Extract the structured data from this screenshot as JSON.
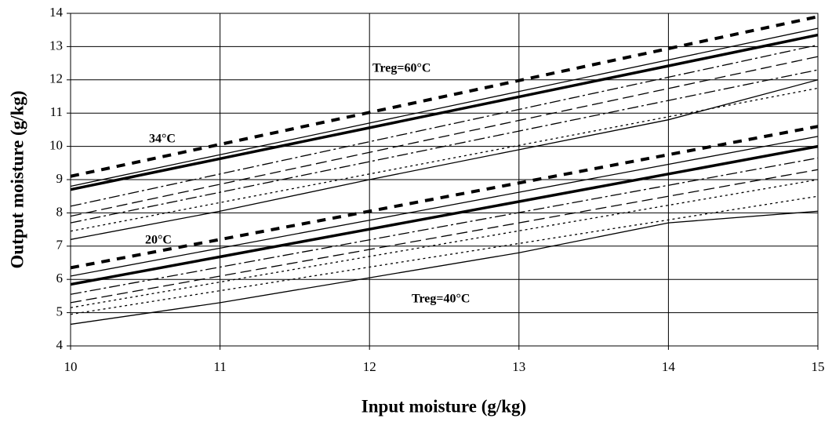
{
  "chart_data": {
    "type": "line",
    "xlabel": "Input moisture (g/kg)",
    "ylabel": "Output moisture (g/kg)",
    "x": [
      10,
      11,
      12,
      13,
      14,
      15
    ],
    "xlim": [
      10,
      15
    ],
    "xticks": [
      10,
      11,
      12,
      13,
      14,
      15
    ],
    "ylim": [
      4,
      14
    ],
    "yticks": [
      4,
      5,
      6,
      7,
      8,
      9,
      10,
      11,
      12,
      13,
      14
    ],
    "grid": true,
    "series": [
      {
        "color": "#000000",
        "style": "dashed",
        "weight": "thick",
        "values": [
          9.1,
          10.06,
          11.02,
          11.98,
          12.94,
          13.9
        ]
      },
      {
        "color": "#000000",
        "style": "solid",
        "weight": "thin",
        "values": [
          8.8,
          9.75,
          10.7,
          11.65,
          12.6,
          13.55
        ]
      },
      {
        "color": "#000000",
        "style": "solid",
        "weight": "thick",
        "values": [
          8.7,
          9.63,
          10.56,
          11.49,
          12.42,
          13.35
        ]
      },
      {
        "color": "#000000",
        "style": "dash-dot",
        "weight": "thin",
        "values": [
          8.2,
          9.17,
          10.14,
          11.11,
          12.08,
          13.05
        ]
      },
      {
        "color": "#000000",
        "style": "dashed",
        "weight": "thin",
        "values": [
          7.9,
          8.86,
          9.82,
          10.78,
          11.74,
          12.7
        ]
      },
      {
        "color": "#000000",
        "style": "dash-dot",
        "weight": "thin",
        "values": [
          7.7,
          8.62,
          9.54,
          10.46,
          11.38,
          12.3
        ]
      },
      {
        "color": "#000000",
        "style": "dotted",
        "weight": "thin",
        "values": [
          7.45,
          8.31,
          9.17,
          10.03,
          10.89,
          11.75
        ]
      },
      {
        "color": "#000000",
        "style": "solid",
        "weight": "thin",
        "values": [
          7.2,
          8.05,
          9.0,
          9.9,
          10.8,
          12.0
        ]
      },
      {
        "color": "#000000",
        "style": "dashed",
        "weight": "thick",
        "values": [
          6.35,
          7.2,
          8.05,
          8.9,
          9.75,
          10.6
        ]
      },
      {
        "color": "#000000",
        "style": "solid",
        "weight": "thin",
        "values": [
          6.1,
          6.94,
          7.78,
          8.62,
          9.46,
          10.3
        ]
      },
      {
        "color": "#000000",
        "style": "solid",
        "weight": "thick",
        "values": [
          5.85,
          6.68,
          7.51,
          8.34,
          9.17,
          10.0
        ]
      },
      {
        "color": "#000000",
        "style": "dash-dot",
        "weight": "thin",
        "values": [
          5.55,
          6.37,
          7.19,
          8.01,
          8.83,
          9.65
        ]
      },
      {
        "color": "#000000",
        "style": "dashed",
        "weight": "thin",
        "values": [
          5.3,
          6.1,
          6.9,
          7.7,
          8.5,
          9.3
        ]
      },
      {
        "color": "#000000",
        "style": "dotted",
        "weight": "thin",
        "values": [
          5.15,
          5.92,
          6.69,
          7.46,
          8.23,
          9.0
        ]
      },
      {
        "color": "#000000",
        "style": "dotted",
        "weight": "thin",
        "values": [
          4.95,
          5.66,
          6.37,
          7.08,
          7.79,
          8.5
        ]
      },
      {
        "color": "#000000",
        "style": "solid",
        "weight": "thin",
        "values": [
          4.65,
          5.3,
          6.05,
          6.8,
          7.7,
          8.05
        ]
      }
    ],
    "annotations": [
      "Treg=60°C",
      "34°C",
      "20°C",
      "Treg=40°C"
    ]
  }
}
